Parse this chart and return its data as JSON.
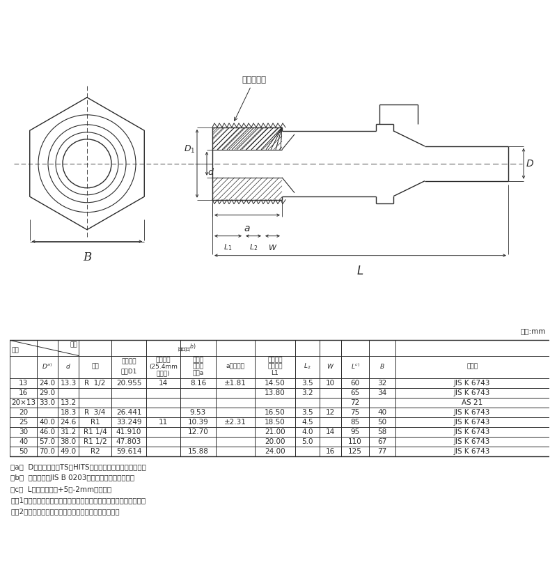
{
  "bg_color": "#ffffff",
  "line_color": "#2a2a2a",
  "unit_label": "単位:mm",
  "table_data": [
    [
      "13",
      "24.0",
      "13.3",
      "R  1/2",
      "20.955",
      "14",
      "8.16",
      "±1.81",
      "14.50",
      "3.5",
      "10",
      "60",
      "32",
      "JIS K 6743"
    ],
    [
      "16",
      "29.0",
      "",
      "",
      "",
      "",
      "",
      "",
      "13.80",
      "3.2",
      "",
      "65",
      "34",
      "JIS K 6743"
    ],
    [
      "20×13",
      "33.0",
      "13.2",
      "",
      "",
      "",
      "",
      "",
      "",
      "",
      "",
      "72",
      "",
      "AS 21"
    ],
    [
      "20",
      "",
      "18.3",
      "R  3/4",
      "26.441",
      "",
      "9.53",
      "",
      "16.50",
      "3.5",
      "12",
      "75",
      "40",
      "JIS K 6743"
    ],
    [
      "25",
      "40.0",
      "24.6",
      "R1",
      "33.249",
      "11",
      "10.39",
      "±2.31",
      "18.50",
      "4.5",
      "",
      "85",
      "50",
      "JIS K 6743"
    ],
    [
      "30",
      "46.0",
      "31.2",
      "R1 1/4",
      "41.910",
      "",
      "12.70",
      "",
      "21.00",
      "4.0",
      "14",
      "95",
      "58",
      "JIS K 6743"
    ],
    [
      "40",
      "57.0",
      "38.0",
      "R1 1/2",
      "47.803",
      "",
      "",
      "",
      "20.00",
      "5.0",
      "",
      "110",
      "67",
      "JIS K 6743"
    ],
    [
      "50",
      "70.0",
      "49.0",
      "R2",
      "59.614",
      "",
      "15.88",
      "",
      "24.00",
      "",
      "16",
      "125",
      "77",
      "JIS K 6743"
    ]
  ],
  "notes": [
    "注a）  Dの許容差は、TS・HITS継手受口共通寸法図による。",
    "注b）  ねじ部は、JIS B 0203のテーパおねじとする。",
    "注c）  Lの許容差は、+5／-2mmとする。",
    "注記1．六角部及び内部の接水部は、硬質ポリ塩化ビニル製である。",
    "注記2．管端防腔継手（コア付き）に対応しています。"
  ]
}
